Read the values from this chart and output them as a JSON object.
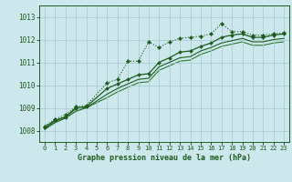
{
  "background_color": "#cce8ec",
  "grid_color": "#aacdd4",
  "line_color_dark": "#1e5c1e",
  "line_color_mid": "#2d7a2d",
  "title": "Graphe pression niveau de la mer (hPa)",
  "xlim": [
    -0.5,
    23.5
  ],
  "ylim": [
    1007.5,
    1013.5
  ],
  "yticks": [
    1008,
    1009,
    1010,
    1011,
    1012,
    1013
  ],
  "xticks": [
    0,
    1,
    2,
    3,
    4,
    5,
    6,
    7,
    8,
    9,
    10,
    11,
    12,
    13,
    14,
    15,
    16,
    17,
    18,
    19,
    20,
    21,
    22,
    23
  ],
  "s1_x": [
    0,
    1,
    2,
    3,
    4,
    6,
    7,
    8,
    9,
    10,
    11,
    12,
    13,
    14,
    15,
    16,
    17,
    18,
    19,
    20,
    21,
    22,
    23
  ],
  "s1_y": [
    1008.2,
    1008.5,
    1008.7,
    1009.05,
    1009.1,
    1010.1,
    1010.25,
    1011.05,
    1011.05,
    1011.9,
    1011.65,
    1011.9,
    1012.05,
    1012.1,
    1012.15,
    1012.25,
    1012.7,
    1012.35,
    1012.35,
    1012.2,
    1012.2,
    1012.25,
    1012.3
  ],
  "s2_x": [
    0,
    1,
    2,
    3,
    4,
    6,
    7,
    8,
    9,
    10,
    11,
    12,
    13,
    14,
    15,
    16,
    17,
    18,
    19,
    20,
    21,
    22,
    23
  ],
  "s2_y": [
    1008.15,
    1008.45,
    1008.6,
    1009.0,
    1009.05,
    1009.85,
    1010.05,
    1010.25,
    1010.45,
    1010.5,
    1011.0,
    1011.2,
    1011.45,
    1011.5,
    1011.7,
    1011.85,
    1012.1,
    1012.2,
    1012.25,
    1012.1,
    1012.1,
    1012.2,
    1012.25
  ],
  "s3_x": [
    0,
    1,
    2,
    3,
    4,
    6,
    7,
    8,
    9,
    10,
    11,
    12,
    13,
    14,
    15,
    16,
    17,
    18,
    19,
    20,
    21,
    22,
    23
  ],
  "s3_y": [
    1008.05,
    1008.35,
    1008.55,
    1008.85,
    1009.0,
    1009.6,
    1009.85,
    1010.05,
    1010.25,
    1010.3,
    1010.8,
    1011.0,
    1011.2,
    1011.25,
    1011.5,
    1011.65,
    1011.85,
    1011.95,
    1012.05,
    1011.9,
    1011.9,
    1012.0,
    1012.05
  ],
  "s4_x": [
    0,
    1,
    2,
    3,
    4,
    6,
    7,
    8,
    9,
    10,
    11,
    12,
    13,
    14,
    15,
    16,
    17,
    18,
    19,
    20,
    21,
    22,
    23
  ],
  "s4_y": [
    1008.1,
    1008.4,
    1008.6,
    1008.95,
    1009.0,
    1009.45,
    1009.7,
    1009.9,
    1010.1,
    1010.15,
    1010.65,
    1010.85,
    1011.05,
    1011.1,
    1011.35,
    1011.5,
    1011.7,
    1011.8,
    1011.9,
    1011.75,
    1011.75,
    1011.85,
    1011.9
  ]
}
